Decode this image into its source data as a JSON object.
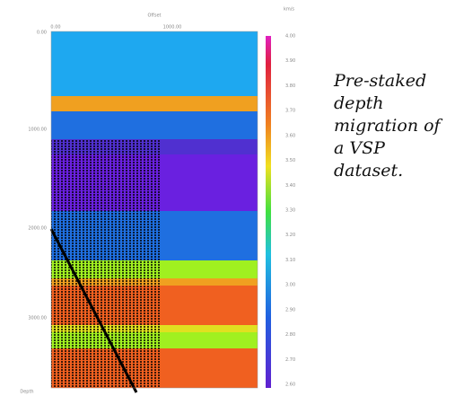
{
  "figure": {
    "x_axis_label": "Offset",
    "x_ticks": [
      "0.00",
      "1000.00"
    ],
    "y_ticks": [
      "0.00",
      "1000.00",
      "2000.00",
      "3000.00"
    ],
    "y_axis_label": "Depth",
    "colorbar_unit": "km/s",
    "colorbar_labels": [
      "4.00",
      "3.90",
      "3.80",
      "3.70",
      "3.60",
      "3.50",
      "3.40",
      "3.30",
      "3.20",
      "3.10",
      "3.00",
      "2.90",
      "2.80",
      "2.70",
      "2.60"
    ]
  },
  "caption": "Pre-staked depth migration of a VSP dataset."
}
